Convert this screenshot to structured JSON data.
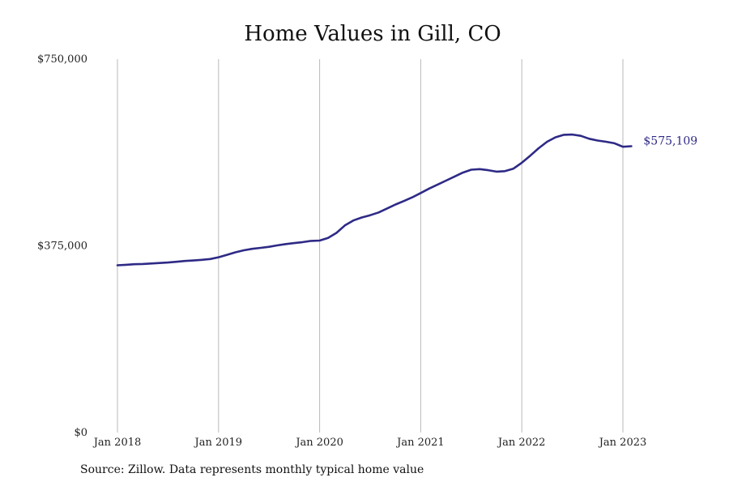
{
  "chart_data": {
    "type": "line",
    "title": "Home Values in Gill, CO",
    "source": "Source: Zillow. Data represents monthly typical home value",
    "ylim": [
      0,
      750000
    ],
    "y_ticks": [
      {
        "value": 0,
        "label": "$0"
      },
      {
        "value": 375000,
        "label": "$375,000"
      },
      {
        "value": 750000,
        "label": "$750,000"
      }
    ],
    "x_ticks": [
      {
        "month_index": 0,
        "label": "Jan 2018"
      },
      {
        "month_index": 12,
        "label": "Jan 2019"
      },
      {
        "month_index": 24,
        "label": "Jan 2020"
      },
      {
        "month_index": 36,
        "label": "Jan 2021"
      },
      {
        "month_index": 48,
        "label": "Jan 2022"
      },
      {
        "month_index": 60,
        "label": "Jan 2023"
      }
    ],
    "grid": "vertical",
    "line_color": "#2e2a86",
    "end_label": "$575,109",
    "series": [
      {
        "values": [
          336000,
          337000,
          338000,
          338500,
          339500,
          340500,
          341500,
          343000,
          344500,
          345500,
          346800,
          348500,
          352000,
          357000,
          362000,
          366000,
          369000,
          371000,
          373000,
          376000,
          378500,
          380500,
          382500,
          385000,
          385500,
          391000,
          401000,
          416000,
          426000,
          432000,
          436500,
          442000,
          450000,
          458000,
          465000,
          472500,
          481000,
          490000,
          498000,
          506000,
          514000,
          522000,
          528000,
          529000,
          527000,
          524000,
          525000,
          530000,
          542000,
          556000,
          571000,
          584000,
          593000,
          598000,
          598500,
          596000,
          590000,
          586500,
          584000,
          581000,
          574000,
          575109
        ]
      }
    ]
  }
}
